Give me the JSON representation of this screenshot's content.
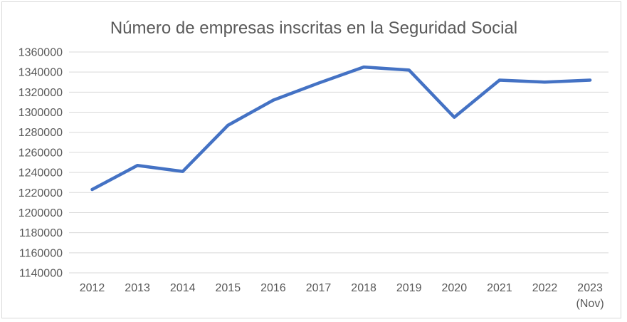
{
  "chart_data": {
    "type": "line",
    "title": "Número de empresas inscritas en la Seguridad Social",
    "categories": [
      "2012",
      "2013",
      "2014",
      "2015",
      "2016",
      "2017",
      "2018",
      "2019",
      "2020",
      "2021",
      "2022",
      "2023 (Nov)"
    ],
    "values": [
      1223000,
      1247000,
      1241000,
      1287000,
      1312000,
      1329000,
      1345000,
      1342000,
      1295000,
      1332000,
      1330000,
      1332000
    ],
    "xlabel": "",
    "ylabel": "",
    "ylim": [
      1140000,
      1360000
    ],
    "ytick_step": 20000,
    "yticks": [
      1360000,
      1340000,
      1320000,
      1300000,
      1280000,
      1260000,
      1240000,
      1220000,
      1200000,
      1180000,
      1160000,
      1140000
    ],
    "grid": "horizontal",
    "legend": "none",
    "colors": {
      "line": "#4472C4",
      "title": "#595959",
      "axis_label": "#595959",
      "gridline": "#D9D9D9",
      "border": "#D9D9D9",
      "background": "#FFFFFF"
    }
  }
}
